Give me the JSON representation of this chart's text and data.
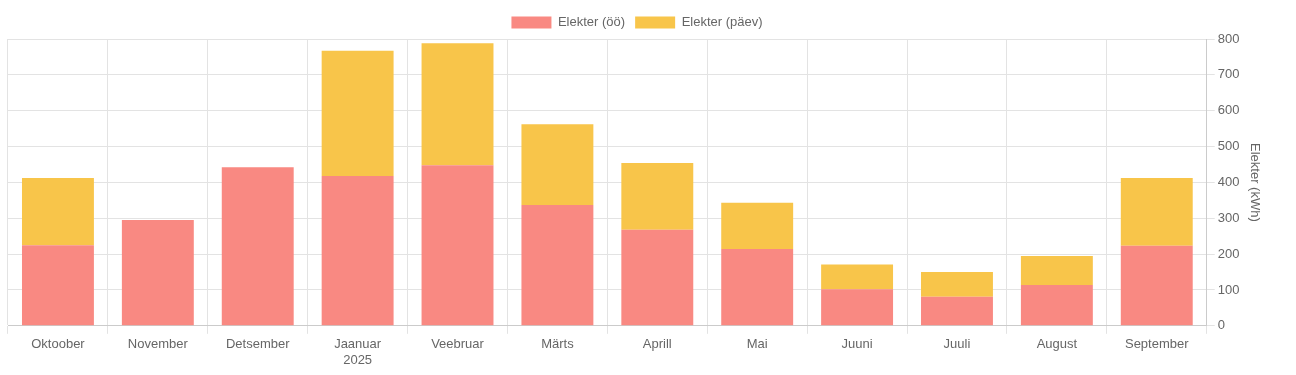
{
  "chart_data": {
    "type": "bar",
    "stacked": true,
    "ylabel": "Elekter (kWh)",
    "categories": [
      "Oktoober",
      "November",
      "Detsember",
      "Jaanuar\n2025",
      "Veebruar",
      "Märts",
      "Aprill",
      "Mai",
      "Juuni",
      "Juuli",
      "August",
      "September"
    ],
    "series": [
      {
        "name": "Elekter (öö)",
        "color": "#f98982",
        "values": [
          225,
          295,
          442,
          418,
          448,
          337,
          268,
          214,
          102,
          81,
          114,
          223
        ]
      },
      {
        "name": "Elekter (päev)",
        "color": "#f8c54a",
        "values": [
          187,
          null,
          null,
          349,
          340,
          225,
          186,
          129,
          69,
          69,
          81,
          189
        ]
      }
    ],
    "ylim": [
      0,
      800
    ],
    "yticks": [
      0,
      100,
      200,
      300,
      400,
      500,
      600,
      700,
      800
    ],
    "grid": true,
    "legend": "top"
  }
}
